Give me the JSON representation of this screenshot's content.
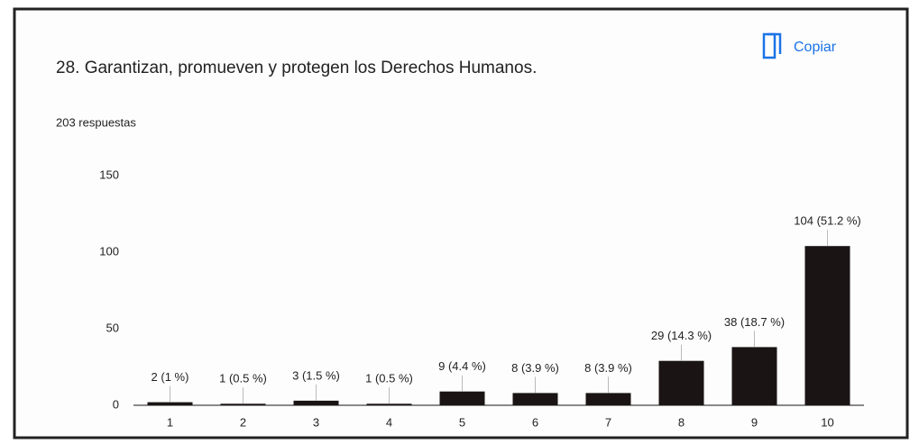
{
  "chart_data": {
    "type": "bar",
    "title": "28. Garantizan, promueven y protegen los Derechos Humanos.",
    "subtitle": "203 respuestas",
    "button": "Copiar",
    "categories": [
      "1",
      "2",
      "3",
      "4",
      "5",
      "6",
      "7",
      "8",
      "9",
      "10"
    ],
    "values": [
      2,
      1,
      3,
      1,
      9,
      8,
      8,
      29,
      38,
      104
    ],
    "value_labels": [
      "2 (1 %)",
      "1 (0.5 %)",
      "3 (1.5 %)",
      "1 (0.5 %)",
      "9 (4.4 %)",
      "8 (3.9 %)",
      "8 (3.9 %)",
      "29 (14.3 %)",
      "38 (18.7 %)",
      "104 (51.2 %)"
    ],
    "color": "#1a1414",
    "ylim": [
      0,
      150
    ],
    "yticks": [
      0,
      50,
      100,
      150
    ],
    "grid": false
  }
}
